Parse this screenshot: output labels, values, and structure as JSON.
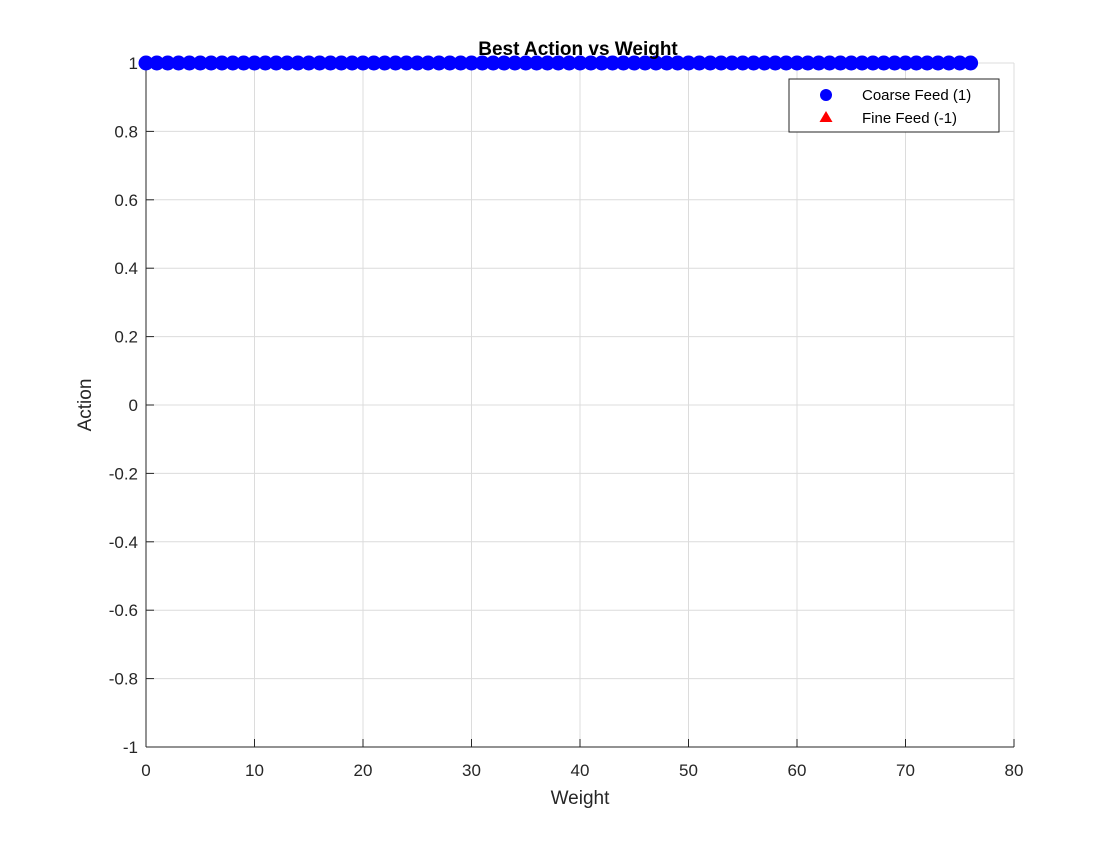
{
  "chart_data": {
    "type": "scatter",
    "title": "Best Action vs Weight",
    "xlabel": "Weight",
    "ylabel": "Action",
    "xlim": [
      0,
      80
    ],
    "ylim": [
      -1,
      1
    ],
    "xticks": [
      0,
      10,
      20,
      30,
      40,
      50,
      60,
      70,
      80
    ],
    "yticks": [
      -1,
      -0.8,
      -0.6,
      -0.4,
      -0.2,
      0,
      0.2,
      0.4,
      0.6,
      0.8,
      1
    ],
    "xtick_labels": [
      "0",
      "10",
      "20",
      "30",
      "40",
      "50",
      "60",
      "70",
      "80"
    ],
    "ytick_labels": [
      "-1",
      "-0.8",
      "-0.6",
      "-0.4",
      "-0.2",
      "0",
      "0.2",
      "0.4",
      "0.6",
      "0.8",
      "1"
    ],
    "grid": true,
    "legend_position": "top-right",
    "series": [
      {
        "name": "Coarse Feed (1)",
        "marker": "circle",
        "color": "#0000ff",
        "x": [
          0,
          1,
          2,
          3,
          4,
          5,
          6,
          7,
          8,
          9,
          10,
          11,
          12,
          13,
          14,
          15,
          16,
          17,
          18,
          19,
          20,
          21,
          22,
          23,
          24,
          25,
          26,
          27,
          28,
          29,
          30,
          31,
          32,
          33,
          34,
          35,
          36,
          37,
          38,
          39,
          40,
          41,
          42,
          43,
          44,
          45,
          46,
          47,
          48,
          49,
          50,
          51,
          52,
          53,
          54,
          55,
          56,
          57,
          58,
          59,
          60,
          61,
          62,
          63,
          64,
          65,
          66,
          67,
          68,
          69,
          70,
          71,
          72,
          73,
          74,
          75,
          76
        ],
        "y": [
          1,
          1,
          1,
          1,
          1,
          1,
          1,
          1,
          1,
          1,
          1,
          1,
          1,
          1,
          1,
          1,
          1,
          1,
          1,
          1,
          1,
          1,
          1,
          1,
          1,
          1,
          1,
          1,
          1,
          1,
          1,
          1,
          1,
          1,
          1,
          1,
          1,
          1,
          1,
          1,
          1,
          1,
          1,
          1,
          1,
          1,
          1,
          1,
          1,
          1,
          1,
          1,
          1,
          1,
          1,
          1,
          1,
          1,
          1,
          1,
          1,
          1,
          1,
          1,
          1,
          1,
          1,
          1,
          1,
          1,
          1,
          1,
          1,
          1,
          1,
          1,
          1
        ]
      },
      {
        "name": "Fine Feed (-1)",
        "marker": "triangle",
        "color": "#ff0000",
        "x": [],
        "y": []
      }
    ]
  }
}
